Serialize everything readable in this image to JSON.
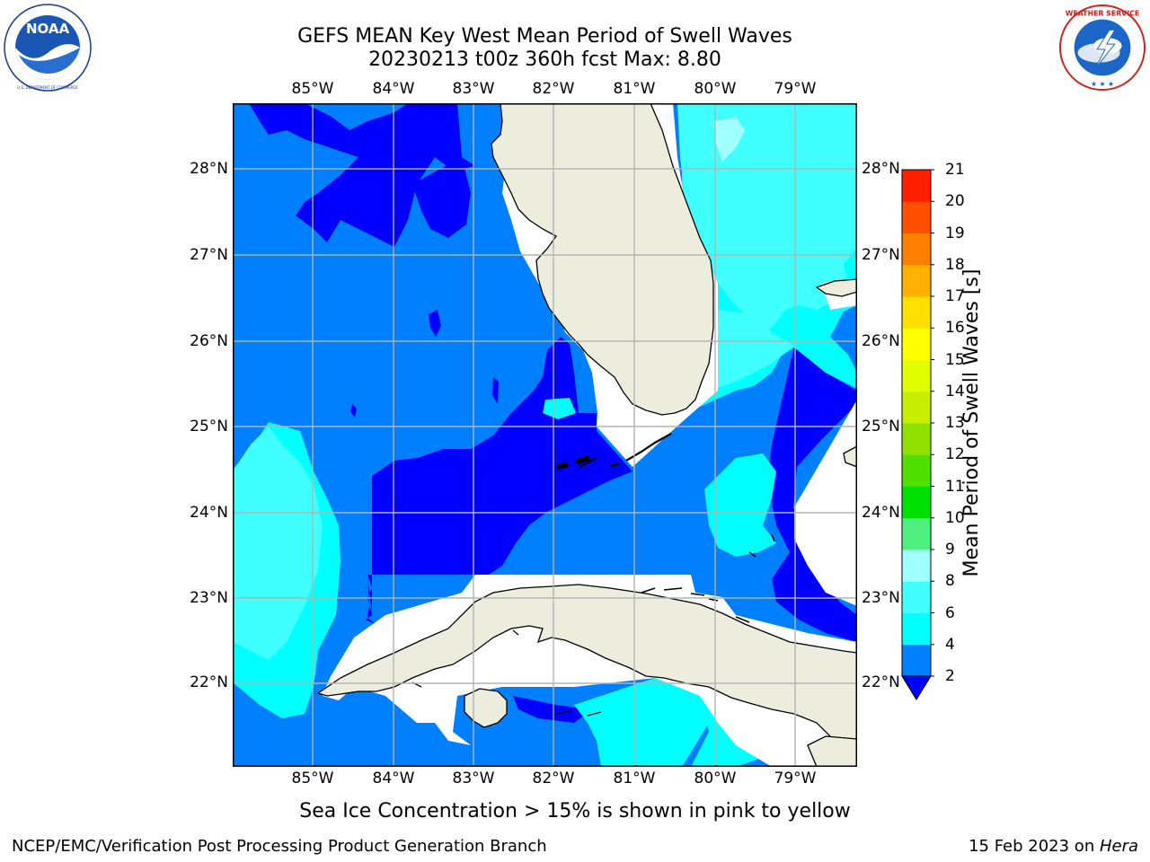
{
  "header": {
    "title_line1": "GEFS MEAN Key West Mean Period of Swell Waves",
    "title_line2": "20230213 t00z 360h fcst   Max: 8.80"
  },
  "logos": {
    "left": {
      "name": "NOAA",
      "ring_text": "NATIONAL OCEANIC AND ATMOSPHERIC ADMINISTRATION · U.S. DEPARTMENT OF COMMERCE"
    },
    "right": {
      "ring_text": "NATIONAL WEATHER SERVICE"
    }
  },
  "map": {
    "lon_labels": [
      "85°W",
      "84°W",
      "83°W",
      "82°W",
      "81°W",
      "80°W",
      "79°W"
    ],
    "lat_labels": [
      "28°N",
      "27°N",
      "26°N",
      "25°N",
      "24°N",
      "23°N",
      "22°N"
    ],
    "extent": {
      "lon_min": -86.0,
      "lon_max": -78.25,
      "lat_min": 21.0,
      "lat_max": 28.75
    }
  },
  "colorbar": {
    "label": "Mean Period of Swell Waves [s]",
    "ticks": [
      "2",
      "4",
      "6",
      "8",
      "9",
      "10",
      "11",
      "12",
      "13",
      "14",
      "15",
      "16",
      "17",
      "18",
      "19",
      "20",
      "21"
    ],
    "colors": [
      "#0000ff",
      "#0080ff",
      "#00ffff",
      "#40ffff",
      "#a0ffff",
      "#50f080",
      "#00e000",
      "#50e000",
      "#90e000",
      "#c8ee00",
      "#e0ff00",
      "#ffff00",
      "#ffe000",
      "#ffb000",
      "#ff8000",
      "#ff5000",
      "#ff2000",
      "#ff0000"
    ]
  },
  "notes": {
    "sea_ice": "Sea Ice Concentration > 15% is shown in pink to yellow"
  },
  "footer": {
    "left": "NCEP/EMC/Verification Post Processing Product Generation Branch",
    "right_prefix": "15 Feb 2023 on ",
    "right_italic": "Hera"
  }
}
